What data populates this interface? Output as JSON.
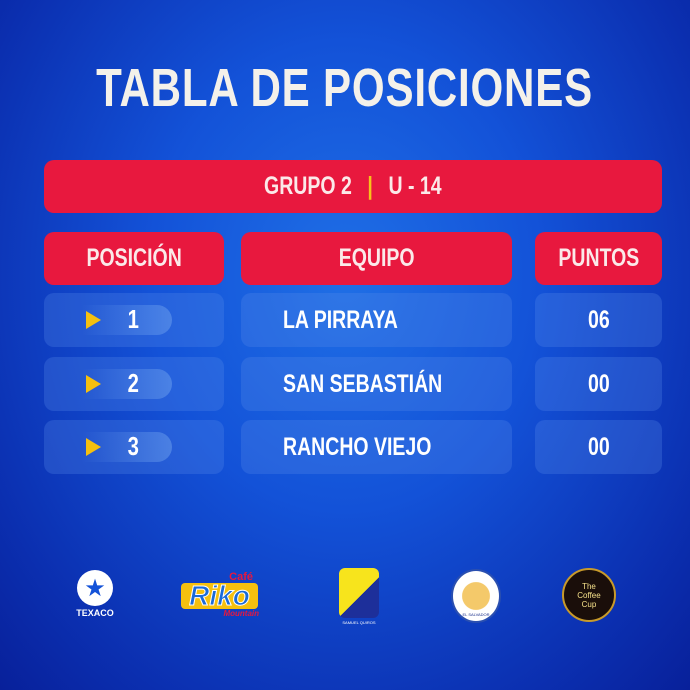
{
  "title": "TABLA DE POSICIONES",
  "group": {
    "label": "GRUPO 2",
    "separator": "|",
    "category": "U - 14"
  },
  "headers": {
    "position": "POSICIÓN",
    "team": "EQUIPO",
    "points": "PUNTOS"
  },
  "rows": [
    {
      "position": "1",
      "team": "LA PIRRAYA",
      "points": "06"
    },
    {
      "position": "2",
      "team": "SAN SEBASTIÁN",
      "points": "00"
    },
    {
      "position": "3",
      "team": "RANCHO VIEJO",
      "points": "00"
    }
  ],
  "sponsors": {
    "texaco": "TEXACO",
    "riko_top": "Café",
    "riko": "Riko",
    "riko_bottom": "Mountain",
    "samuel": "SAMUEL QUIROS",
    "apfp": "EL SALVADOR",
    "coffee": "The Coffee Cup"
  },
  "colors": {
    "accent_red": "#e8183e",
    "arrow_yellow": "#f5c00f",
    "background_blue": "#1352d8"
  }
}
